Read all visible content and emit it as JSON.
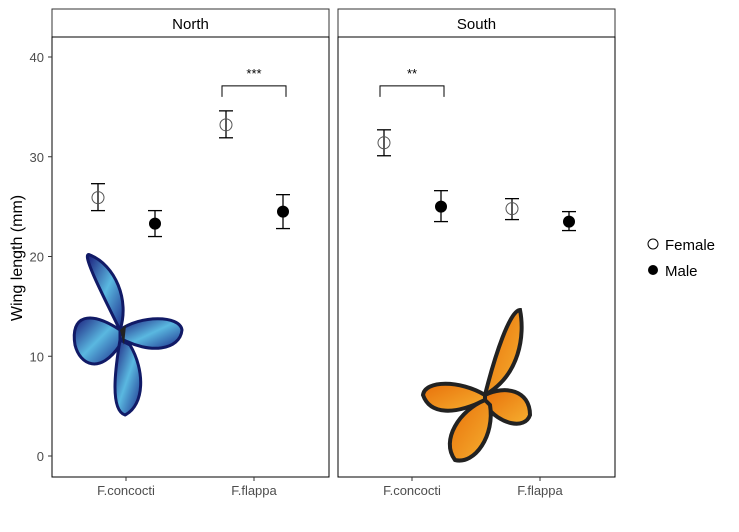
{
  "chart_data": {
    "type": "scatter",
    "ylabel": "Wing length (mm)",
    "xlabel": "",
    "ylim": [
      -1,
      42
    ],
    "yticks": [
      0,
      10,
      20,
      30,
      40
    ],
    "categories": [
      "F.concocti",
      "F.flappa"
    ],
    "grid": false,
    "legend_position": "right",
    "legend": [
      {
        "name": "Female",
        "marker": "open-circle"
      },
      {
        "name": "Male",
        "marker": "filled-circle"
      }
    ],
    "panels": [
      {
        "title": "North",
        "series": [
          {
            "name": "Female",
            "values": [
              25.9,
              33.2
            ],
            "ci_low": [
              24.6,
              31.9
            ],
            "ci_high": [
              27.3,
              34.6
            ]
          },
          {
            "name": "Male",
            "values": [
              23.3,
              24.5
            ],
            "ci_low": [
              22.0,
              22.8
            ],
            "ci_high": [
              24.6,
              26.2
            ]
          }
        ],
        "significance": {
          "category": "F.flappa",
          "label": "***"
        },
        "decoration": "blue-butterfly"
      },
      {
        "title": "South",
        "series": [
          {
            "name": "Female",
            "values": [
              31.4,
              24.8
            ],
            "ci_low": [
              30.1,
              23.7
            ],
            "ci_high": [
              32.7,
              25.8
            ]
          },
          {
            "name": "Male",
            "values": [
              25.0,
              23.5
            ],
            "ci_low": [
              23.5,
              22.6
            ],
            "ci_high": [
              26.6,
              24.5
            ]
          }
        ],
        "significance": {
          "category": "F.concocti",
          "label": "**"
        },
        "decoration": "monarch-butterfly"
      }
    ]
  }
}
